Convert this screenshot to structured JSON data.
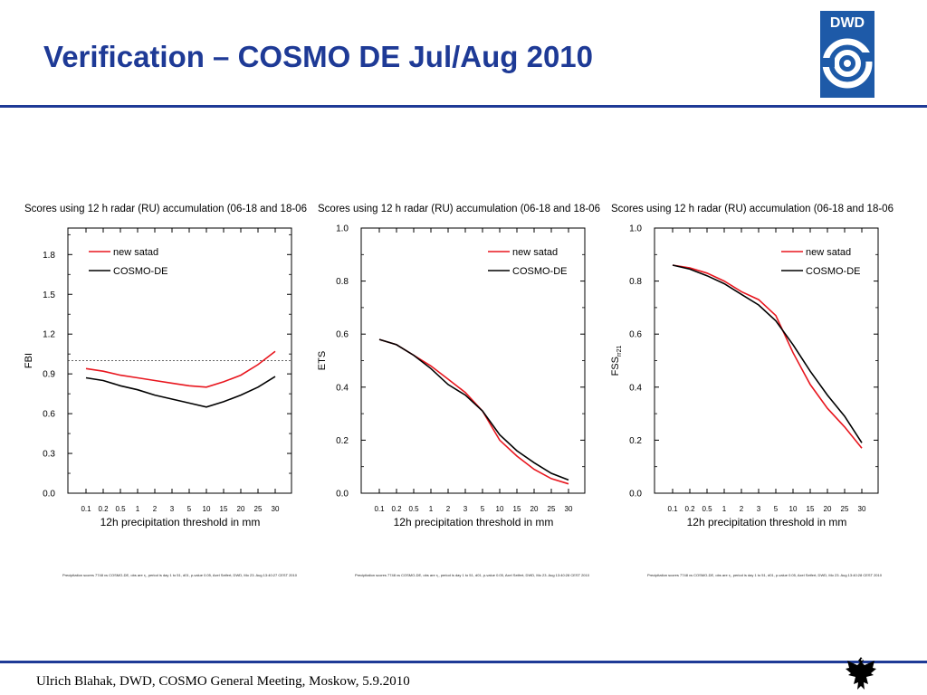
{
  "slide": {
    "title": "Verification – COSMO DE Jul/Aug 2010",
    "footer": "Ulrich Blahak, DWD, COSMO General Meeting, Moskow, 5.9.2010",
    "logo_text": "DWD",
    "accent_color": "#1e3a96"
  },
  "chart_data": [
    {
      "type": "line",
      "title": "Scores using 12 h radar (RU) accumulation (06-18 and 18-06",
      "xlabel": "12h precipitation threshold in mm",
      "ylabel": "FBI",
      "categories": [
        "0.1",
        "0.2",
        "0.5",
        "1",
        "2",
        "3",
        "5",
        "10",
        "15",
        "20",
        "25",
        "30"
      ],
      "ylim": [
        0,
        2.0
      ],
      "yticks": [
        "0.0",
        "0.3",
        "0.6",
        "0.9",
        "1.2",
        "1.5",
        "1.8"
      ],
      "reference_line": 1.0,
      "legend_position": "top-left",
      "series": [
        {
          "name": "new satad",
          "color": "#e8161e",
          "values": [
            0.94,
            0.92,
            0.89,
            0.87,
            0.85,
            0.83,
            0.81,
            0.8,
            0.84,
            0.89,
            0.97,
            1.07
          ]
        },
        {
          "name": "COSMO-DE",
          "color": "#000000",
          "values": [
            0.87,
            0.85,
            0.81,
            0.78,
            0.74,
            0.71,
            0.68,
            0.65,
            0.69,
            0.74,
            0.8,
            0.88
          ]
        }
      ],
      "footnote": "Precipitation scores 7748 vs COSMO-DE, obs are r₁, period is day 1 to 51, d01, p-value 0.05,   Axel Seifert, DWD, Mo 23. Aug 13:40:27 CEST 2010"
    },
    {
      "type": "line",
      "title": "Scores using 12 h radar (RU) accumulation (06-18 and 18-06",
      "xlabel": "12h precipitation threshold in mm",
      "ylabel": "ETS",
      "categories": [
        "0.1",
        "0.2",
        "0.5",
        "1",
        "2",
        "3",
        "5",
        "10",
        "15",
        "20",
        "25",
        "30"
      ],
      "ylim": [
        0,
        1.0
      ],
      "yticks": [
        "0.0",
        "0.2",
        "0.4",
        "0.6",
        "0.8",
        "1.0"
      ],
      "legend_position": "top-right",
      "series": [
        {
          "name": "new satad",
          "color": "#e8161e",
          "values": [
            0.58,
            0.56,
            0.52,
            0.48,
            0.43,
            0.38,
            0.31,
            0.2,
            0.14,
            0.09,
            0.055,
            0.035
          ]
        },
        {
          "name": "COSMO-DE",
          "color": "#000000",
          "values": [
            0.58,
            0.56,
            0.52,
            0.47,
            0.41,
            0.37,
            0.31,
            0.22,
            0.16,
            0.115,
            0.075,
            0.05
          ]
        }
      ],
      "footnote": "Precipitation scores 7748 vs COSMO-DE, obs are r₁, period is day 1 to 51, d01, p-value 0.05,   Axel Seifert, DWD, Mo 23. Aug 13:40:28 CEST 2010"
    },
    {
      "type": "line",
      "title": "Scores using 12 h radar (RU) accumulation (06-18 and 18-06",
      "xlabel": "12h precipitation threshold in mm",
      "ylabel": "FSS",
      "ylabel_sub": "rr21",
      "categories": [
        "0.1",
        "0.2",
        "0.5",
        "1",
        "2",
        "3",
        "5",
        "10",
        "15",
        "20",
        "25",
        "30"
      ],
      "ylim": [
        0,
        1.0
      ],
      "yticks": [
        "0.0",
        "0.2",
        "0.4",
        "0.6",
        "0.8",
        "1.0"
      ],
      "legend_position": "top-right",
      "series": [
        {
          "name": "new satad",
          "color": "#e8161e",
          "values": [
            0.86,
            0.85,
            0.83,
            0.8,
            0.76,
            0.73,
            0.67,
            0.53,
            0.41,
            0.32,
            0.25,
            0.17
          ]
        },
        {
          "name": "COSMO-DE",
          "color": "#000000",
          "values": [
            0.86,
            0.845,
            0.82,
            0.79,
            0.75,
            0.71,
            0.65,
            0.56,
            0.46,
            0.37,
            0.29,
            0.19
          ]
        }
      ],
      "footnote": "Precipitation scores 7748 vs COSMO-DE, obs are r₁, period is day 1 to 51, d01, p-value 0.05,   Axel Seifert, DWD, Mo 23. Aug 13:40:28 CEST 2010"
    }
  ]
}
